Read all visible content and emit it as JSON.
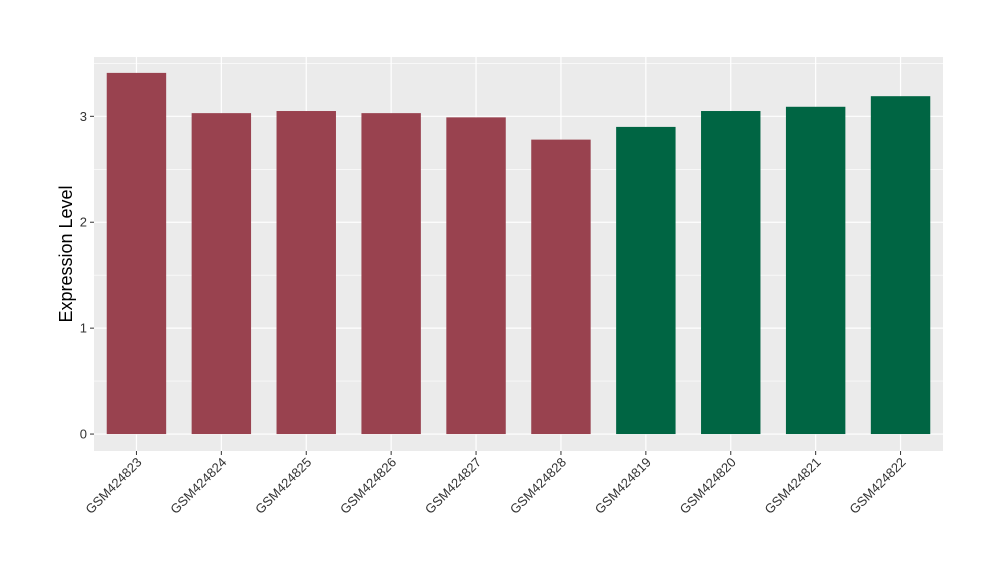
{
  "chart_data": {
    "type": "bar",
    "categories": [
      "GSM424823",
      "GSM424824",
      "GSM424825",
      "GSM424826",
      "GSM424827",
      "GSM424828",
      "GSM424819",
      "GSM424820",
      "GSM424821",
      "GSM424822"
    ],
    "values": [
      3.41,
      3.03,
      3.05,
      3.03,
      2.99,
      2.78,
      2.9,
      3.05,
      3.09,
      3.19
    ],
    "bar_colors": [
      "#99424f",
      "#99424f",
      "#99424f",
      "#99424f",
      "#99424f",
      "#99424f",
      "#006543",
      "#006543",
      "#006543",
      "#006543"
    ],
    "title": "",
    "xlabel": "",
    "ylabel": "Expression Level",
    "ylim": [
      -0.16,
      3.56
    ],
    "yticks": [
      0,
      1,
      2,
      3
    ],
    "grid": true,
    "panel_background": "#ebebeb",
    "gridline_color": "#ffffff"
  }
}
